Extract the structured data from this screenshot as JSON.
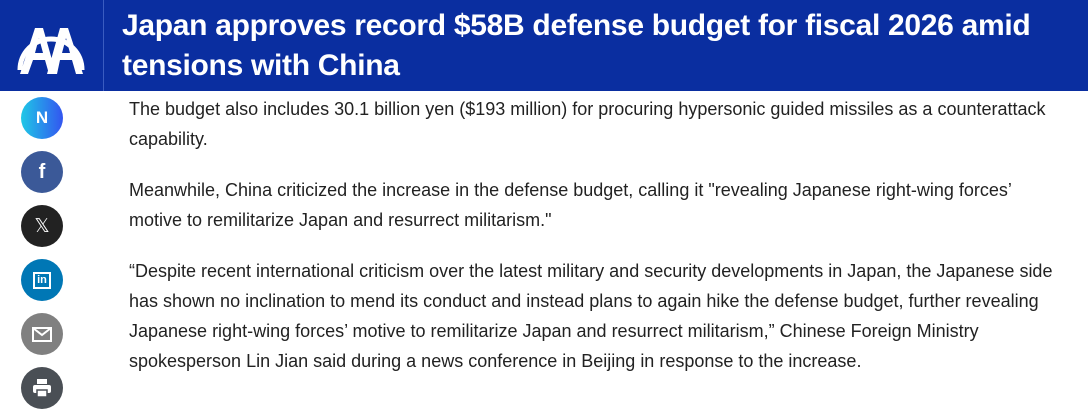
{
  "header": {
    "logo_text": "AA",
    "title": "Japan approves record $58B defense budget for fiscal 2026 amid tensions with China",
    "background": "#0a2ea0"
  },
  "share": [
    {
      "name": "news-icon",
      "color": "linear-gradient(90deg,#1fc8e6,#3355f0)"
    },
    {
      "name": "facebook-icon",
      "color": "#3b5998"
    },
    {
      "name": "x-icon",
      "color": "#222222"
    },
    {
      "name": "linkedin-icon",
      "color": "#0077b5"
    },
    {
      "name": "email-icon",
      "color": "#808080"
    },
    {
      "name": "print-icon",
      "color": "#4a4f55"
    }
  ],
  "article": {
    "paragraphs": [
      "The budget also includes 30.1 billion yen ($193 million) for procuring hypersonic guided missiles as a counterattack capability.",
      "Meanwhile, China criticized the increase in the defense budget, calling it \"revealing Japanese right-wing forces’ motive to remilitarize Japan and resurrect militarism.\"",
      "“Despite recent international criticism over the latest military and security developments in Japan, the Japanese side has shown no inclination to mend its conduct and instead plans to again hike the defense budget, further revealing Japanese right-wing forces’ motive to remilitarize Japan and resurrect militarism,” Chinese Foreign Ministry spokesperson Lin Jian said during a news conference in Beijing in response to the increase."
    ]
  }
}
